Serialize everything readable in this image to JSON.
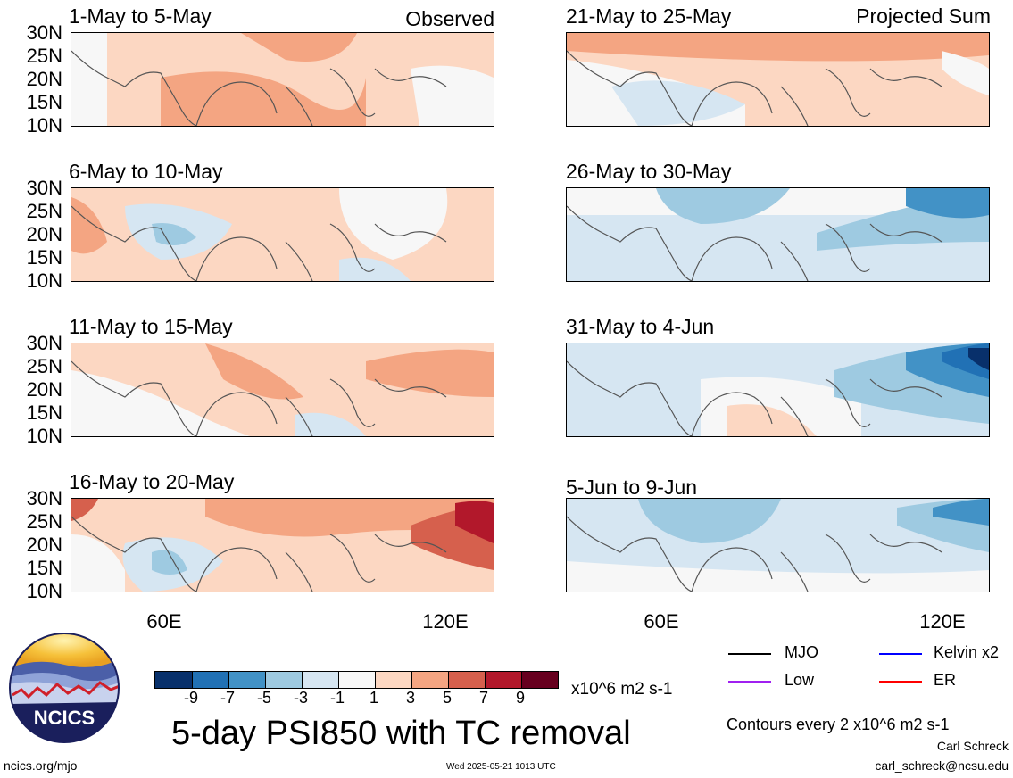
{
  "header": {
    "observed_label": "Observed",
    "projected_label": "Projected Sum"
  },
  "panels": [
    {
      "id": "p1",
      "title": "1-May to 5-May"
    },
    {
      "id": "p2",
      "title": "6-May to 10-May"
    },
    {
      "id": "p3",
      "title": "11-May to 15-May"
    },
    {
      "id": "p4",
      "title": "16-May to 20-May"
    },
    {
      "id": "p5",
      "title": "21-May to 25-May"
    },
    {
      "id": "p6",
      "title": "26-May to 30-May"
    },
    {
      "id": "p7",
      "title": "31-May to 4-Jun"
    },
    {
      "id": "p8",
      "title": "5-Jun to 9-Jun"
    }
  ],
  "lat_labels": [
    "30N",
    "25N",
    "20N",
    "15N",
    "10N"
  ],
  "lon_labels": [
    "60E",
    "120E"
  ],
  "colorbar": {
    "colors": [
      "#08306b",
      "#2171b5",
      "#4292c6",
      "#9ecae1",
      "#d6e6f2",
      "#f7f7f7",
      "#fcd7c2",
      "#f4a582",
      "#d6604d",
      "#b2182b",
      "#67001f"
    ],
    "tick_labels": [
      "-9",
      "-7",
      "-5",
      "-3",
      "-1",
      "1",
      "3",
      "5",
      "7",
      "9"
    ],
    "units": "x10^6 m2 s-1"
  },
  "legend": {
    "items": [
      {
        "label": "MJO",
        "color": "#000000"
      },
      {
        "label": "Kelvin x2",
        "color": "#0000ff"
      },
      {
        "label": "Low",
        "color": "#a020f0"
      },
      {
        "label": "ER",
        "color": "#ff0000"
      }
    ],
    "contours_note": "Contours every 2 x10^6 m2 s-1"
  },
  "footer": {
    "main_title": "5-day PSI850 with TC removal",
    "url": "ncics.org/mjo",
    "timestamp": "Wed 2025-05-21 1013 UTC",
    "author": "Carl Schreck",
    "email": "carl_schreck@ncsu.edu",
    "logo_text": "NCICS"
  }
}
